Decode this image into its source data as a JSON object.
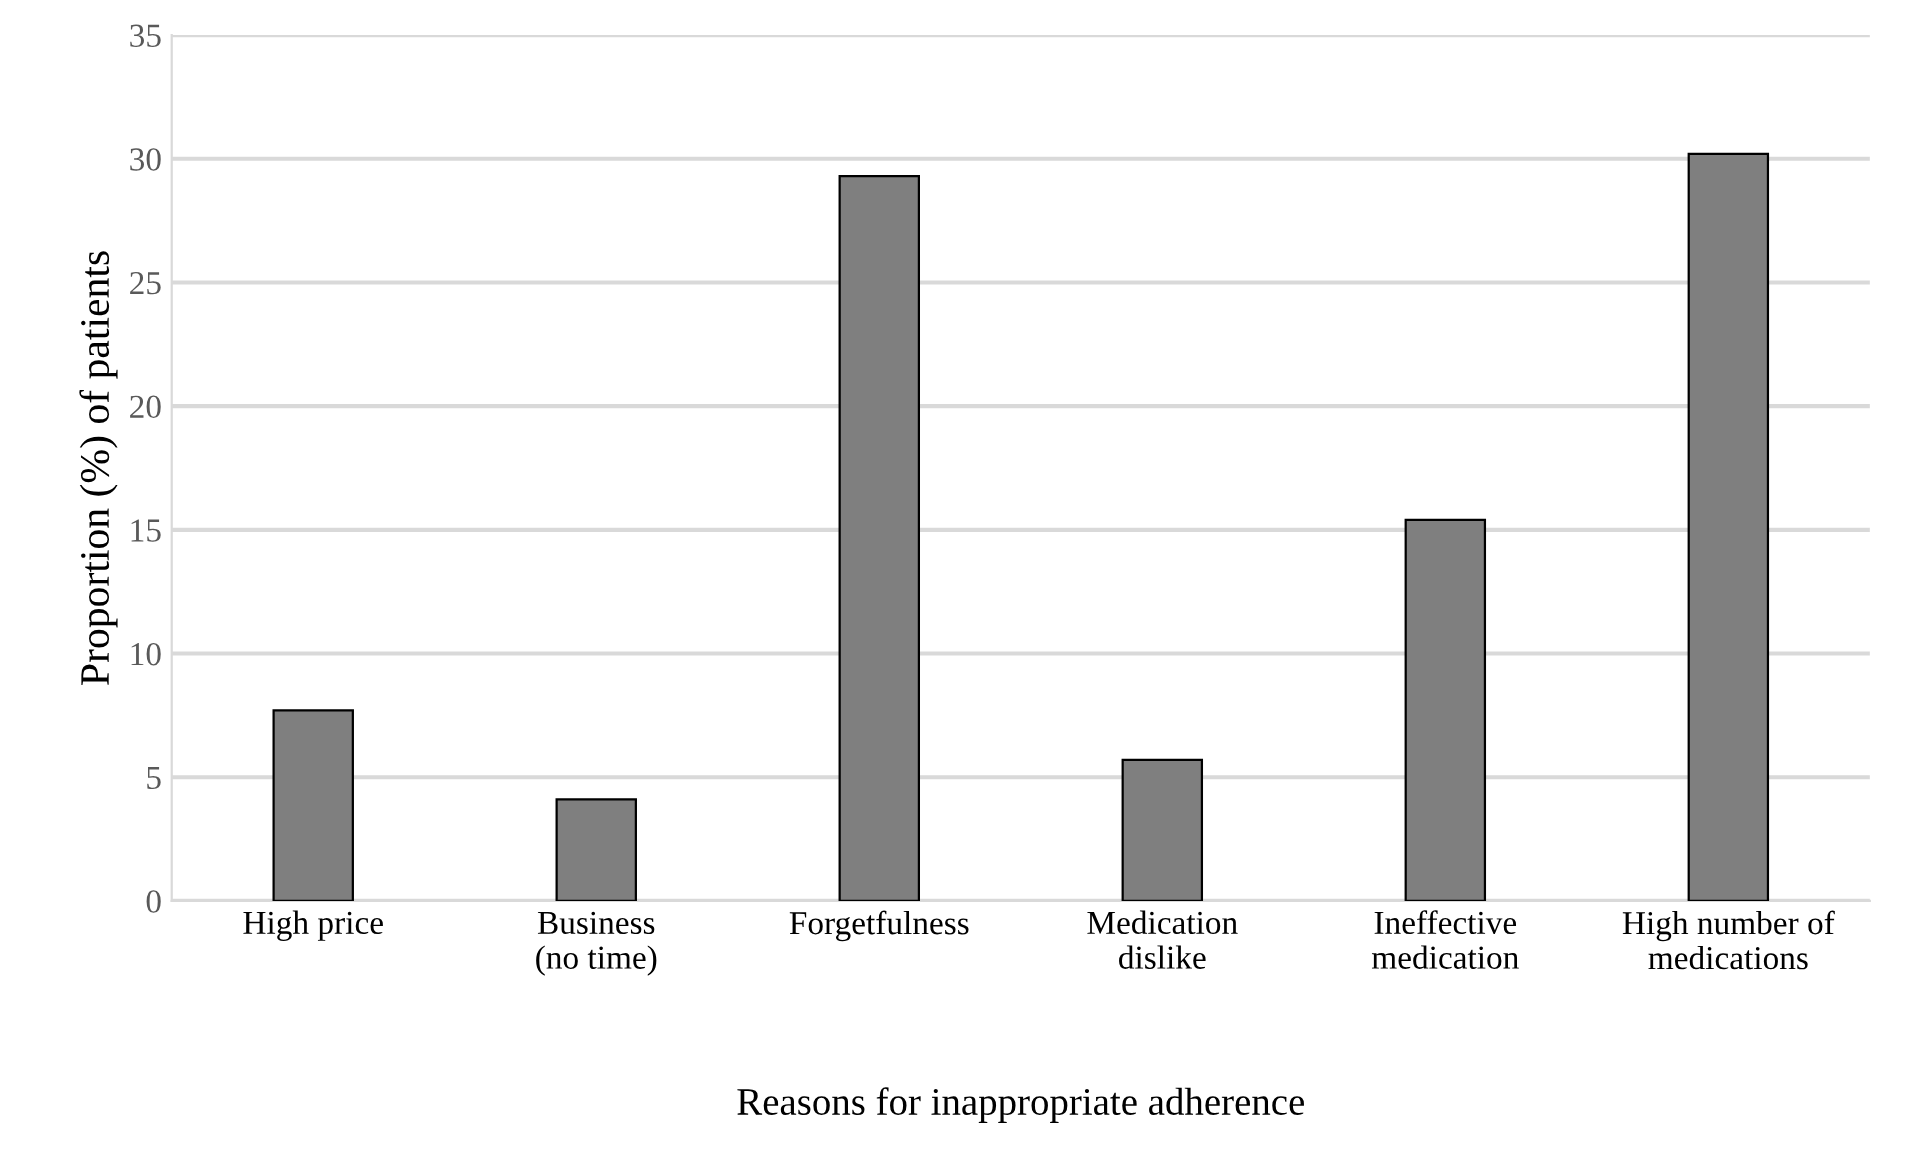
{
  "chart_data": {
    "type": "bar",
    "categories": [
      "High price",
      "Business\n(no time)",
      "Forgetfulness",
      "Medication\ndislike",
      "Ineffective\nmedication",
      "High number of\nmedications"
    ],
    "values": [
      7.7,
      4.1,
      29.3,
      5.7,
      15.4,
      30.2
    ],
    "color": "#7f7f7f",
    "xlabel": "Reasons for inappropriate adherence",
    "ylabel": "Proportion (%) of patients",
    "ylim": [
      0,
      35
    ],
    "yticks": [
      0,
      5,
      10,
      15,
      20,
      25,
      30,
      35
    ],
    "grid": "y"
  }
}
